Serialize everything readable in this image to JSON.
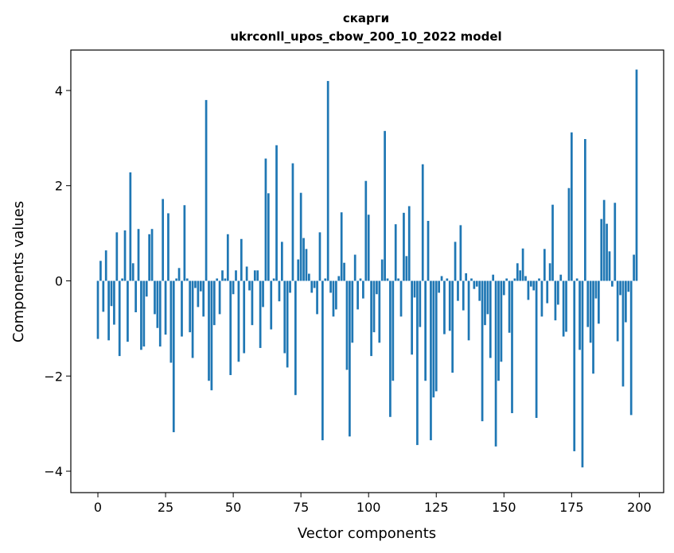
{
  "chart_data": {
    "type": "bar",
    "title": "скарги",
    "subtitle": "ukrconll_upos_cbow_200_10_2022 model",
    "xlabel": "Vector components",
    "ylabel": "Components values",
    "xlim": [
      -10,
      209
    ],
    "ylim": [
      -4.45,
      4.85
    ],
    "xticks": [
      0,
      25,
      50,
      75,
      100,
      125,
      150,
      175,
      200
    ],
    "yticks": [
      -4,
      -2,
      0,
      2,
      4
    ],
    "ytick_labels": [
      "−4",
      "−2",
      "0",
      "2",
      "4"
    ],
    "grid": false,
    "bar_color": "#1f77b4",
    "x": [
      0,
      1,
      2,
      3,
      4,
      5,
      6,
      7,
      8,
      9,
      10,
      11,
      12,
      13,
      14,
      15,
      16,
      17,
      18,
      19,
      20,
      21,
      22,
      23,
      24,
      25,
      26,
      27,
      28,
      29,
      30,
      31,
      32,
      33,
      34,
      35,
      36,
      37,
      38,
      39,
      40,
      41,
      42,
      43,
      44,
      45,
      46,
      47,
      48,
      49,
      50,
      51,
      52,
      53,
      54,
      55,
      56,
      57,
      58,
      59,
      60,
      61,
      62,
      63,
      64,
      65,
      66,
      67,
      68,
      69,
      70,
      71,
      72,
      73,
      74,
      75,
      76,
      77,
      78,
      79,
      80,
      81,
      82,
      83,
      84,
      85,
      86,
      87,
      88,
      89,
      90,
      91,
      92,
      93,
      94,
      95,
      96,
      97,
      98,
      99,
      100,
      101,
      102,
      103,
      104,
      105,
      106,
      107,
      108,
      109,
      110,
      111,
      112,
      113,
      114,
      115,
      116,
      117,
      118,
      119,
      120,
      121,
      122,
      123,
      124,
      125,
      126,
      127,
      128,
      129,
      130,
      131,
      132,
      133,
      134,
      135,
      136,
      137,
      138,
      139,
      140,
      141,
      142,
      143,
      144,
      145,
      146,
      147,
      148,
      149,
      150,
      151,
      152,
      153,
      154,
      155,
      156,
      157,
      158,
      159,
      160,
      161,
      162,
      163,
      164,
      165,
      166,
      167,
      168,
      169,
      170,
      171,
      172,
      173,
      174,
      175,
      176,
      177,
      178,
      179,
      180,
      181,
      182,
      183,
      184,
      185,
      186,
      187,
      188,
      189,
      190,
      191,
      192,
      193,
      194,
      195,
      196,
      197,
      198,
      199
    ],
    "values": [
      -1.22,
      0.42,
      -0.65,
      0.64,
      -1.25,
      -0.53,
      -0.92,
      1.02,
      -1.58,
      0.05,
      1.06,
      -1.28,
      2.28,
      0.37,
      -0.66,
      1.09,
      -1.45,
      -1.38,
      -0.33,
      0.98,
      1.09,
      -0.7,
      -0.99,
      -1.38,
      1.72,
      -1.13,
      1.42,
      -1.72,
      -3.18,
      0.05,
      0.27,
      -1.17,
      1.59,
      0.05,
      -1.08,
      -1.62,
      -0.15,
      -0.55,
      -0.22,
      -0.75,
      3.8,
      -2.1,
      -2.3,
      -0.93,
      0.05,
      -0.7,
      0.22,
      0.05,
      0.98,
      -1.98,
      -0.28,
      0.22,
      -1.7,
      0.88,
      -1.52,
      0.3,
      -0.2,
      -0.93,
      0.22,
      0.22,
      -1.41,
      -0.55,
      2.57,
      1.84,
      -1.02,
      0.05,
      2.85,
      -0.43,
      0.82,
      -1.52,
      -1.82,
      -0.25,
      2.47,
      -2.4,
      0.45,
      1.85,
      0.9,
      0.67,
      0.15,
      -0.25,
      -0.15,
      -0.7,
      1.02,
      -3.35,
      0.05,
      4.2,
      -0.25,
      -0.75,
      -0.6,
      0.1,
      1.44,
      0.38,
      -1.87,
      -3.27,
      -1.3,
      0.55,
      -0.6,
      0.05,
      -0.37,
      2.1,
      1.39,
      -1.58,
      -1.08,
      -0.28,
      -1.3,
      0.45,
      3.15,
      0.05,
      -2.86,
      -2.1,
      1.19,
      0.05,
      -0.75,
      1.43,
      0.52,
      1.57,
      -1.55,
      -0.35,
      -3.45,
      -0.97,
      2.45,
      -2.1,
      1.26,
      -3.35,
      -2.45,
      -2.32,
      -0.25,
      0.1,
      -1.12,
      0.05,
      -1.05,
      -1.93,
      0.82,
      -0.42,
      1.17,
      -0.62,
      0.16,
      -1.25,
      0.05,
      -0.17,
      -0.12,
      -0.42,
      -2.95,
      -0.93,
      -0.7,
      -1.62,
      0.13,
      -3.48,
      -2.1,
      -1.7,
      -0.3,
      0.05,
      -1.09,
      -2.78,
      0.05,
      0.37,
      0.22,
      0.68,
      0.1,
      -0.4,
      -0.12,
      -0.2,
      -2.88,
      0.05,
      -0.75,
      0.67,
      -0.47,
      0.37,
      1.6,
      -0.83,
      -0.5,
      0.13,
      -1.17,
      -1.07,
      1.95,
      3.12,
      -3.58,
      0.05,
      -1.45,
      -3.92,
      2.98,
      -0.97,
      -1.3,
      -1.95,
      -0.37,
      -0.9,
      1.3,
      1.7,
      1.2,
      0.62,
      -0.12,
      1.64,
      -1.27,
      -0.3,
      -2.22,
      -0.87,
      -0.23,
      -2.82,
      0.55,
      4.44
    ]
  }
}
